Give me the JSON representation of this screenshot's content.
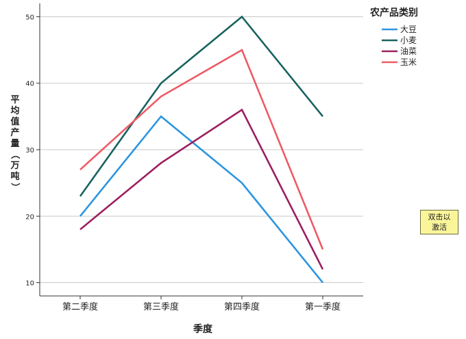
{
  "chart_data": {
    "type": "line",
    "categories": [
      "第二季度",
      "第三季度",
      "第四季度",
      "第一季度"
    ],
    "series": [
      {
        "name": "大豆",
        "color": "#2b95e0",
        "values": [
          20,
          35,
          25,
          10
        ]
      },
      {
        "name": "小麦",
        "color": "#17635f",
        "values": [
          23,
          40,
          50,
          35
        ]
      },
      {
        "name": "油菜",
        "color": "#9b1f5f",
        "values": [
          18,
          28,
          36,
          12
        ]
      },
      {
        "name": "玉米",
        "color": "#ee5a66",
        "values": [
          27,
          38,
          45,
          15
        ]
      }
    ],
    "xlabel": "季度",
    "ylabel": "平均值产量（万吨）",
    "ylim": [
      8,
      52
    ],
    "yticks": [
      10,
      20,
      30,
      40,
      50
    ],
    "grid": true,
    "legend_title": "农产品类别",
    "legend_position": "top-right"
  },
  "activate_button": {
    "line1": "双击以",
    "line2": "激活"
  }
}
